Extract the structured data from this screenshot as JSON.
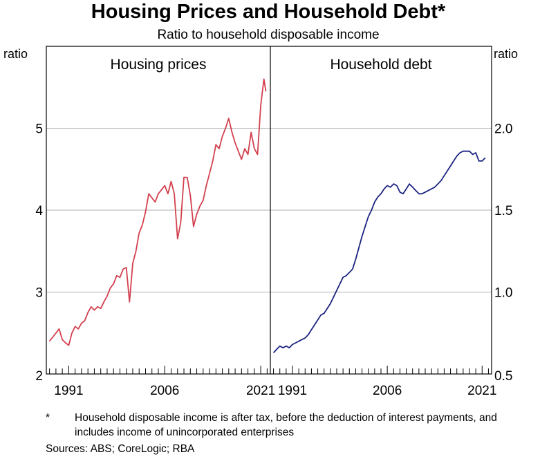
{
  "title": "Housing Prices and Household Debt*",
  "subtitle": "Ratio to household disposable income",
  "footnote": {
    "marker": "*",
    "text": "Household disposable income is after tax, before the deduction of interest payments, and includes income of unincorporated enterprises"
  },
  "sources": "Sources: ABS; CoreLogic; RBA",
  "colors": {
    "housing": "#d2404e",
    "debt": "#1c2380",
    "grid": "#b0b0b0",
    "axis": "#000000"
  },
  "chart_data": [
    {
      "type": "line",
      "title": "Housing prices",
      "ylabel": "ratio",
      "ylim": [
        2,
        6
      ],
      "yticks": [
        2,
        3,
        4,
        5
      ],
      "xlim": [
        1987.5,
        2022.5
      ],
      "xticks": [
        "1991",
        "2006",
        "2021"
      ],
      "grid": true,
      "series": [
        {
          "x": [
            1988,
            1988.5,
            1989,
            1989.5,
            1990,
            1990.5,
            1991,
            1991.5,
            1992,
            1992.5,
            1993,
            1993.5,
            1994,
            1994.5,
            1995,
            1995.5,
            1996,
            1996.5,
            1997,
            1997.5,
            1998,
            1998.5,
            1999,
            1999.5,
            2000,
            2000.5,
            2001,
            2001.5,
            2002,
            2002.5,
            2003,
            2003.5,
            2004,
            2004.5,
            2005,
            2005.5,
            2006,
            2006.5,
            2007,
            2007.5,
            2008,
            2008.5,
            2009,
            2009.5,
            2010,
            2010.5,
            2011,
            2011.5,
            2012,
            2012.5,
            2013,
            2013.5,
            2014,
            2014.5,
            2015,
            2015.5,
            2016,
            2016.5,
            2017,
            2017.5,
            2018,
            2018.5,
            2019,
            2019.5,
            2020,
            2020.5,
            2021,
            2021.5,
            2021.8
          ],
          "values": [
            2.4,
            2.45,
            2.5,
            2.55,
            2.42,
            2.38,
            2.35,
            2.5,
            2.58,
            2.55,
            2.62,
            2.65,
            2.75,
            2.82,
            2.78,
            2.82,
            2.8,
            2.88,
            2.95,
            3.05,
            3.1,
            3.2,
            3.18,
            3.28,
            3.3,
            2.88,
            3.35,
            3.5,
            3.72,
            3.82,
            3.98,
            4.2,
            4.15,
            4.1,
            4.2,
            4.25,
            4.3,
            4.2,
            4.35,
            4.2,
            3.65,
            3.85,
            4.4,
            4.4,
            4.18,
            3.8,
            3.95,
            4.05,
            4.12,
            4.3,
            4.45,
            4.6,
            4.8,
            4.75,
            4.9,
            5.0,
            5.12,
            4.95,
            4.82,
            4.72,
            4.62,
            4.75,
            4.68,
            4.95,
            4.75,
            4.68,
            5.28,
            5.6,
            5.45
          ]
        }
      ]
    },
    {
      "type": "line",
      "title": "Household debt",
      "ylabel": "ratio",
      "ylim": [
        0.5,
        2.5
      ],
      "yticks": [
        "0.5",
        "1.0",
        "1.5",
        "2.0"
      ],
      "xlim": [
        1987.5,
        2022.5
      ],
      "xticks": [
        "1991",
        "2006",
        "2021"
      ],
      "grid": true,
      "series": [
        {
          "x": [
            1988,
            1988.5,
            1989,
            1989.5,
            1990,
            1990.5,
            1991,
            1991.5,
            1992,
            1992.5,
            1993,
            1993.5,
            1994,
            1994.5,
            1995,
            1995.5,
            1996,
            1996.5,
            1997,
            1997.5,
            1998,
            1998.5,
            1999,
            1999.5,
            2000,
            2000.5,
            2001,
            2001.5,
            2002,
            2002.5,
            2003,
            2003.5,
            2004,
            2004.5,
            2005,
            2005.5,
            2006,
            2006.5,
            2007,
            2007.5,
            2008,
            2008.5,
            2009,
            2009.5,
            2010,
            2010.5,
            2011,
            2011.5,
            2012,
            2012.5,
            2013,
            2013.5,
            2014,
            2014.5,
            2015,
            2015.5,
            2016,
            2016.5,
            2017,
            2017.5,
            2018,
            2018.5,
            2019,
            2019.5,
            2020,
            2020.5,
            2021,
            2021.5
          ],
          "values": [
            0.63,
            0.65,
            0.67,
            0.66,
            0.67,
            0.66,
            0.68,
            0.69,
            0.7,
            0.71,
            0.72,
            0.74,
            0.77,
            0.8,
            0.83,
            0.86,
            0.87,
            0.9,
            0.93,
            0.97,
            1.01,
            1.05,
            1.09,
            1.1,
            1.12,
            1.14,
            1.2,
            1.27,
            1.34,
            1.4,
            1.46,
            1.5,
            1.55,
            1.58,
            1.6,
            1.63,
            1.65,
            1.64,
            1.66,
            1.65,
            1.61,
            1.6,
            1.63,
            1.66,
            1.64,
            1.62,
            1.6,
            1.6,
            1.61,
            1.62,
            1.63,
            1.64,
            1.66,
            1.68,
            1.71,
            1.74,
            1.77,
            1.8,
            1.83,
            1.85,
            1.86,
            1.86,
            1.86,
            1.84,
            1.85,
            1.8,
            1.8,
            1.82
          ]
        }
      ]
    }
  ]
}
